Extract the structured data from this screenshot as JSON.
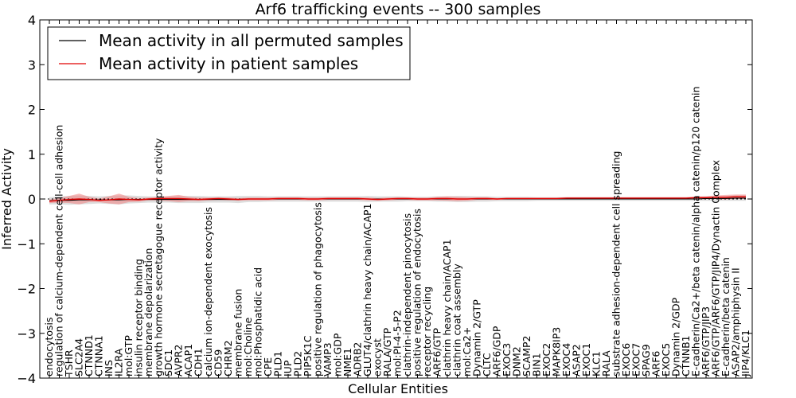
{
  "chart_data": {
    "type": "line",
    "title": "Arf6 trafficking events -- 300 samples",
    "xlabel": "Cellular Entities",
    "ylabel": "Inferred Activity",
    "ylim": [
      -4,
      4
    ],
    "yticks": [
      -4,
      -3,
      -2,
      -1,
      0,
      1,
      2,
      3,
      4
    ],
    "ytick_labels": [
      "−4",
      "−3",
      "−2",
      "−1",
      "0",
      "1",
      "2",
      "3",
      "4"
    ],
    "grid": false,
    "legend_position": "top-left",
    "colors": {
      "permuted_line": "#000000",
      "permuted_band": "#c8c8c8",
      "patient_line": "#e00000",
      "patient_band": "#f08080"
    },
    "categories": [
      "endocytosis",
      "regulation of calcium-dependent cell-cell adhesion",
      "TSHR",
      "SLC2A4",
      "CTNND1",
      "CTNNA1",
      "INS",
      "IL2RA",
      "mol:GTP",
      "insulin receptor binding",
      "membrane depolarization",
      "growth hormone secretagogue receptor activity",
      "SDC1",
      "AVPR2",
      "ACAP1",
      "CDH1",
      "calcium ion-dependent exocytosis",
      "CD59",
      "CHRM2",
      "membrane fusion",
      "mol:Choline",
      "mol:Phosphatidic acid",
      "CPE",
      "PLD1",
      "IUP",
      "PLD2",
      "PIP5K1C",
      "positive regulation of phagocytosis",
      "VAMP3",
      "mol:GDP",
      "NME1",
      "ADRB2",
      "GLUT4/clathrin heavy chain/ACAP1",
      "exocyst",
      "RALA/GTP",
      "mol:PI-4-5-P2",
      "clathrin-independent pinocytosis",
      "positive regulation of endocytosis",
      "receptor recycling",
      "ARF6/GTP",
      "clathrin heavy chain/ACAP1",
      "clathrin coat assembly",
      "mol:Ca2+",
      "Dynamin 2/GTP",
      "CLTC",
      "ARF6/GDP",
      "EXOC3",
      "DNM2",
      "SCAMP2",
      "BIN1",
      "EXOC2",
      "MAPK8IP3",
      "EXOC4",
      "ASAP2",
      "EXOC1",
      "KLC1",
      "RALA",
      "substrate adhesion-dependent cell spreading",
      "EXOC6",
      "EXOC7",
      "SPAG9",
      "ARF6",
      "EXOC5",
      "Dynamin 2/GDP",
      "CTNNB1",
      "E-cadherin/Ca2+/beta catenin/alpha catenin/p120 catenin",
      "ARF6/GTP/JIP3",
      "ARF6/GTP/ARF6/GTP/JIP4/Dynactin Complex",
      "E-cadherin/beta catenin",
      "ASAP2/amphiphysin II",
      "JIP4/KLC1"
    ],
    "series": [
      {
        "name": "Mean activity in all permuted samples",
        "color": "#000000",
        "values": [
          -0.04,
          -0.03,
          -0.03,
          -0.02,
          -0.02,
          -0.02,
          -0.02,
          -0.02,
          -0.01,
          -0.01,
          -0.01,
          -0.01,
          -0.01,
          -0.01,
          -0.01,
          -0.01,
          -0.01,
          -0.01,
          -0.01,
          -0.01,
          0.0,
          0.0,
          0.0,
          0.0,
          0.0,
          0.0,
          0.0,
          0.0,
          0.0,
          0.0,
          0.0,
          0.0,
          0.0,
          0.0,
          0.0,
          0.0,
          0.0,
          0.0,
          0.0,
          0.0,
          0.0,
          0.0,
          0.0,
          0.0,
          0.0,
          0.0,
          0.0,
          0.0,
          0.0,
          0.0,
          0.0,
          0.0,
          0.0,
          0.0,
          0.0,
          0.0,
          0.0,
          0.0,
          0.0,
          0.0,
          0.0,
          0.0,
          0.0,
          0.0,
          0.0,
          0.0,
          0.01,
          0.01,
          0.01,
          0.02,
          0.02
        ],
        "band": [
          0.08,
          0.09,
          0.1,
          0.1,
          0.09,
          0.08,
          0.09,
          0.1,
          0.09,
          0.08,
          0.07,
          0.07,
          0.07,
          0.08,
          0.08,
          0.08,
          0.07,
          0.07,
          0.07,
          0.08,
          0.07,
          0.07,
          0.06,
          0.06,
          0.06,
          0.06,
          0.06,
          0.06,
          0.06,
          0.06,
          0.06,
          0.06,
          0.07,
          0.06,
          0.06,
          0.06,
          0.05,
          0.05,
          0.05,
          0.06,
          0.06,
          0.07,
          0.07,
          0.06,
          0.06,
          0.05,
          0.05,
          0.05,
          0.05,
          0.04,
          0.04,
          0.04,
          0.04,
          0.04,
          0.04,
          0.04,
          0.04,
          0.04,
          0.04,
          0.04,
          0.04,
          0.04,
          0.04,
          0.04,
          0.04,
          0.04,
          0.05,
          0.05,
          0.05,
          0.06,
          0.06
        ]
      },
      {
        "name": "Mean activity in patient samples",
        "color": "#e00000",
        "values": [
          -0.05,
          -0.03,
          -0.01,
          0.0,
          -0.01,
          -0.03,
          -0.02,
          0.0,
          -0.01,
          -0.02,
          0.0,
          0.01,
          0.01,
          0.01,
          0.0,
          -0.01,
          0.0,
          0.01,
          0.0,
          -0.01,
          0.0,
          0.0,
          0.0,
          0.01,
          0.01,
          0.01,
          0.0,
          0.0,
          0.01,
          0.01,
          0.01,
          0.01,
          0.0,
          -0.01,
          0.0,
          0.01,
          0.01,
          0.0,
          0.0,
          0.01,
          0.01,
          0.0,
          0.0,
          0.01,
          0.01,
          0.0,
          0.01,
          0.01,
          0.01,
          0.01,
          0.01,
          0.01,
          0.02,
          0.02,
          0.02,
          0.02,
          0.02,
          0.02,
          0.02,
          0.02,
          0.02,
          0.02,
          0.02,
          0.02,
          0.02,
          0.03,
          0.03,
          0.04,
          0.04,
          0.05,
          0.05
        ],
        "band": [
          0.04,
          0.05,
          0.08,
          0.12,
          0.06,
          0.04,
          0.08,
          0.12,
          0.06,
          0.04,
          0.03,
          0.04,
          0.06,
          0.08,
          0.05,
          0.04,
          0.03,
          0.03,
          0.03,
          0.03,
          0.03,
          0.03,
          0.03,
          0.03,
          0.03,
          0.03,
          0.03,
          0.03,
          0.03,
          0.03,
          0.03,
          0.03,
          0.03,
          0.03,
          0.03,
          0.03,
          0.03,
          0.03,
          0.03,
          0.04,
          0.05,
          0.05,
          0.04,
          0.03,
          0.03,
          0.02,
          0.02,
          0.02,
          0.02,
          0.02,
          0.02,
          0.02,
          0.02,
          0.02,
          0.02,
          0.02,
          0.02,
          0.02,
          0.02,
          0.02,
          0.02,
          0.02,
          0.02,
          0.02,
          0.02,
          0.03,
          0.03,
          0.04,
          0.05,
          0.05,
          0.05
        ]
      }
    ]
  }
}
